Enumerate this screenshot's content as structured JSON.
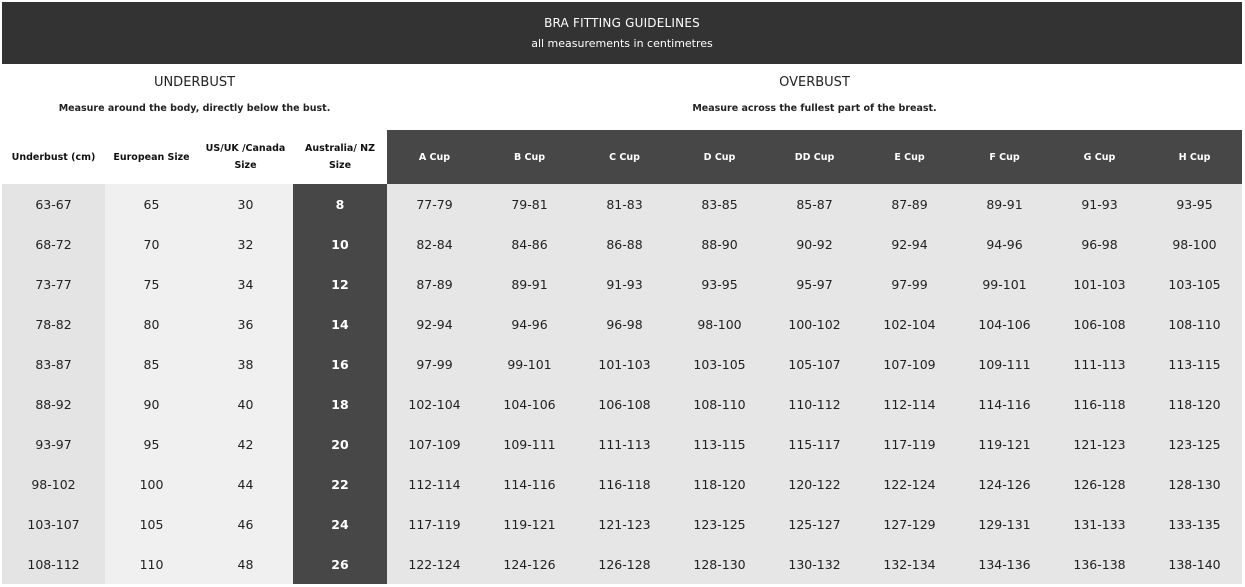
{
  "banner": {
    "title": "BRA FITTING GUIDELINES",
    "subtitle": "all measurements in centimetres"
  },
  "underbust": {
    "heading": "UNDERBUST",
    "description": "Measure around the body, directly below the bust."
  },
  "overbust": {
    "heading": "OVERBUST",
    "description": "Measure across the fullest part of the breast."
  },
  "columns": [
    "Underbust (cm)",
    "European Size",
    "US/UK /Canada Size",
    "Australia/ NZ Size",
    "A Cup",
    "B Cup",
    "C Cup",
    "D Cup",
    "DD Cup",
    "E Cup",
    "F Cup",
    "G Cup",
    "H Cup"
  ],
  "rows": [
    [
      "63-67",
      "65",
      "30",
      "8",
      "77-79",
      "79-81",
      "81-83",
      "83-85",
      "85-87",
      "87-89",
      "89-91",
      "91-93",
      "93-95"
    ],
    [
      "68-72",
      "70",
      "32",
      "10",
      "82-84",
      "84-86",
      "86-88",
      "88-90",
      "90-92",
      "92-94",
      "94-96",
      "96-98",
      "98-100"
    ],
    [
      "73-77",
      "75",
      "34",
      "12",
      "87-89",
      "89-91",
      "91-93",
      "93-95",
      "95-97",
      "97-99",
      "99-101",
      "101-103",
      "103-105"
    ],
    [
      "78-82",
      "80",
      "36",
      "14",
      "92-94",
      "94-96",
      "96-98",
      "98-100",
      "100-102",
      "102-104",
      "104-106",
      "106-108",
      "108-110"
    ],
    [
      "83-87",
      "85",
      "38",
      "16",
      "97-99",
      "99-101",
      "101-103",
      "103-105",
      "105-107",
      "107-109",
      "109-111",
      "111-113",
      "113-115"
    ],
    [
      "88-92",
      "90",
      "40",
      "18",
      "102-104",
      "104-106",
      "106-108",
      "108-110",
      "110-112",
      "112-114",
      "114-116",
      "116-118",
      "118-120"
    ],
    [
      "93-97",
      "95",
      "42",
      "20",
      "107-109",
      "109-111",
      "111-113",
      "113-115",
      "115-117",
      "117-119",
      "119-121",
      "121-123",
      "123-125"
    ],
    [
      "98-102",
      "100",
      "44",
      "22",
      "112-114",
      "114-116",
      "116-118",
      "118-120",
      "120-122",
      "122-124",
      "124-126",
      "126-128",
      "128-130"
    ],
    [
      "103-107",
      "105",
      "46",
      "24",
      "117-119",
      "119-121",
      "121-123",
      "123-125",
      "125-127",
      "127-129",
      "129-131",
      "131-133",
      "133-135"
    ],
    [
      "108-112",
      "110",
      "48",
      "26",
      "122-124",
      "124-126",
      "126-128",
      "128-130",
      "130-132",
      "132-134",
      "134-136",
      "136-138",
      "138-140"
    ]
  ]
}
